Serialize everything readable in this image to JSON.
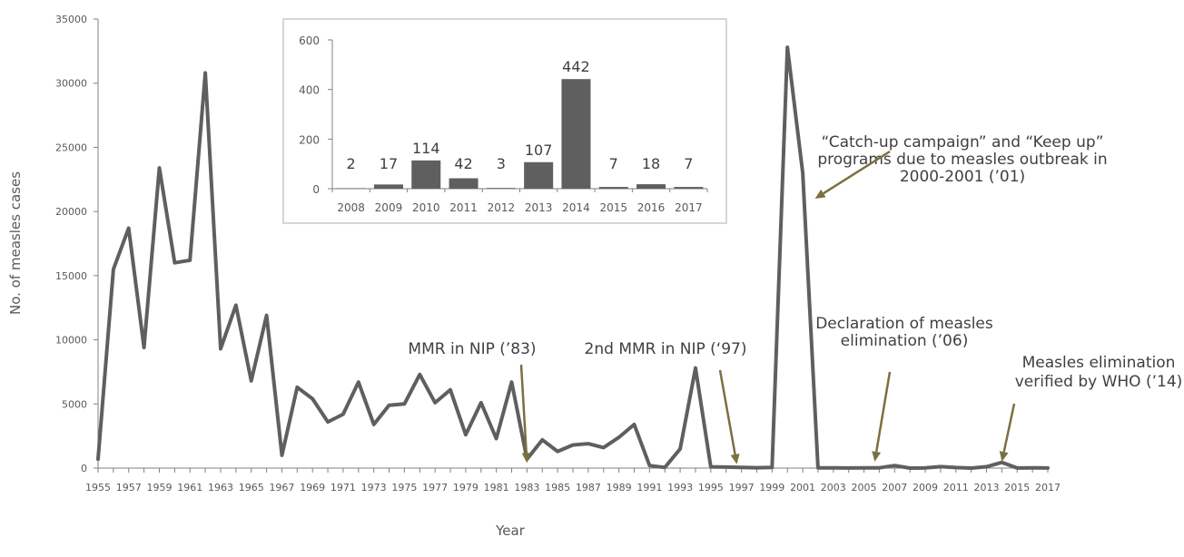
{
  "chart_data": [
    {
      "type": "line",
      "xlabel": "Year",
      "ylabel": "No. of measles cases",
      "ylim": [
        0,
        35000
      ],
      "yticks": [
        "0",
        "5000",
        "10000",
        "15000",
        "20000",
        "25000",
        "30000",
        "35000"
      ],
      "x": [
        1955,
        1956,
        1957,
        1958,
        1959,
        1960,
        1961,
        1962,
        1963,
        1964,
        1965,
        1966,
        1967,
        1968,
        1969,
        1970,
        1971,
        1972,
        1973,
        1974,
        1975,
        1976,
        1977,
        1978,
        1979,
        1980,
        1981,
        1982,
        1983,
        1984,
        1985,
        1986,
        1987,
        1988,
        1989,
        1990,
        1991,
        1992,
        1993,
        1994,
        1995,
        1996,
        1997,
        1998,
        1999,
        2000,
        2001,
        2002,
        2003,
        2004,
        2005,
        2006,
        2007,
        2008,
        2009,
        2010,
        2011,
        2012,
        2013,
        2014,
        2015,
        2016,
        2017
      ],
      "xtick_labels": [
        "1955",
        "1957",
        "1959",
        "1961",
        "1963",
        "1965",
        "1967",
        "1969",
        "1971",
        "1973",
        "1975",
        "1977",
        "1979",
        "1981",
        "1983",
        "1985",
        "1987",
        "1989",
        "1991",
        "1993",
        "1995",
        "1997",
        "1999",
        "2001",
        "2003",
        "2005",
        "2007",
        "2009",
        "2011",
        "2013",
        "2015",
        "2017"
      ],
      "series": [
        {
          "color": "#5f5f5f",
          "values": [
            700,
            15500,
            18700,
            9400,
            23400,
            16000,
            16200,
            30800,
            9300,
            12700,
            6800,
            11900,
            1000,
            6300,
            5400,
            3600,
            4200,
            6700,
            3400,
            4900,
            5000,
            7300,
            5100,
            6100,
            2600,
            5100,
            2300,
            6700,
            700,
            2200,
            1300,
            1800,
            1900,
            1600,
            2400,
            3400,
            200,
            50,
            1500,
            7800,
            100,
            80,
            50,
            30,
            50,
            32800,
            23000,
            20,
            20,
            10,
            20,
            20,
            200,
            2,
            17,
            114,
            42,
            3,
            107,
            442,
            7,
            18,
            7
          ]
        }
      ],
      "annotations": [
        {
          "id": "mmr83",
          "lines": [
            "MMR in NIP (’83)"
          ],
          "arrow_year": 1983,
          "arrow_value": 400
        },
        {
          "id": "mmr97",
          "lines": [
            "2nd MMR in NIP (‘97)"
          ],
          "arrow_year": 1996.7,
          "arrow_value": 300
        },
        {
          "id": "campaign01",
          "lines": [
            "“Catch-up campaign” and “Keep up”",
            "programs due to measles outbreak in",
            "2000-2001 (’01)"
          ],
          "arrow_year": 2001.8,
          "arrow_value": 21000
        },
        {
          "id": "elim06",
          "lines": [
            "Declaration of measles",
            "elimination (’06)"
          ],
          "arrow_year": 2005.7,
          "arrow_value": 500
        },
        {
          "id": "who14",
          "lines": [
            "Measles elimination",
            "verified by WHO (’14)"
          ],
          "arrow_year": 2014,
          "arrow_value": 500
        }
      ],
      "annotation_color": "#7a7040"
    },
    {
      "type": "bar",
      "categories": [
        "2008",
        "2009",
        "2010",
        "2011",
        "2012",
        "2013",
        "2014",
        "2015",
        "2016",
        "2017"
      ],
      "values": [
        2,
        17,
        114,
        42,
        3,
        107,
        442,
        7,
        18,
        7
      ],
      "data_labels": [
        "2",
        "17",
        "114",
        "42",
        "3",
        "107",
        "442",
        "7",
        "18",
        "7"
      ],
      "ylim": [
        0,
        600
      ],
      "yticks": [
        "0",
        "200",
        "400",
        "600"
      ],
      "bar_color": "#5f5f5f"
    }
  ]
}
